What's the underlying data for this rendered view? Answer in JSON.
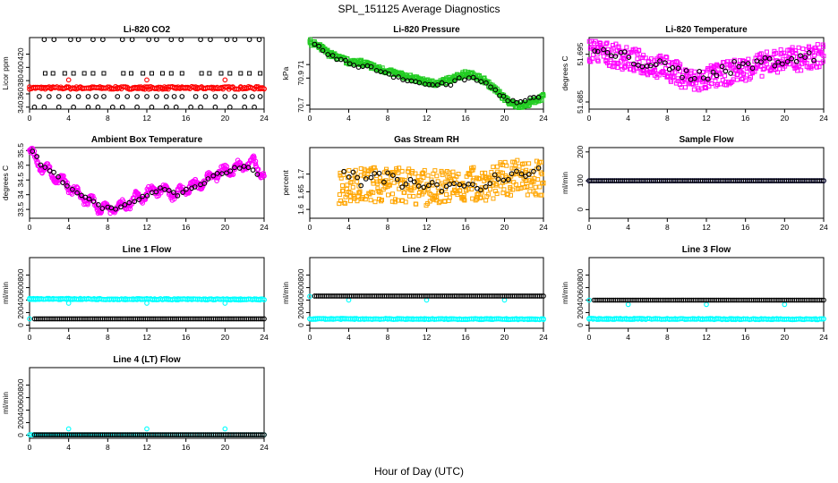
{
  "figure": {
    "title": "SPL_151125  Average Diagnostics",
    "xlabel": "Hour of Day (UTC)"
  },
  "colors": {
    "black": "#000000",
    "red": "#ff0000",
    "green": "#22cc22",
    "magenta": "#ff00ff",
    "orange": "#ffa500",
    "blue": "#0000ff",
    "cyan": "#00ffff",
    "axis": "#000000"
  },
  "chart_data": [
    {
      "type": "scatter",
      "title": "Li-820 CO2",
      "ylabel": "Licor ppm",
      "xlim": [
        0,
        24
      ],
      "ylim": [
        337,
        445
      ],
      "xticks": [
        0,
        4,
        8,
        12,
        16,
        20,
        24
      ],
      "yticks": [
        340,
        360,
        380,
        400,
        420
      ],
      "series": [
        {
          "color": "red",
          "marker": "circle",
          "kind": "flat",
          "x": [
            0,
            24
          ],
          "y": [
            369,
            369
          ],
          "spread": 2
        },
        {
          "color": "red",
          "marker": "circle",
          "kind": "points",
          "x": [
            4,
            12,
            20
          ],
          "y": [
            381,
            381,
            381
          ]
        },
        {
          "color": "black",
          "marker": "circle",
          "kind": "points",
          "x": [
            1.5,
            2.5,
            4.2,
            5,
            6.5,
            7.5,
            9.5,
            10.5,
            12.2,
            13,
            14.5,
            15.5,
            17.5,
            18.5,
            20.2,
            21,
            22.5,
            23.5
          ],
          "y": [
            442,
            442,
            442,
            442,
            442,
            442,
            442,
            442,
            442,
            442,
            442,
            442,
            442,
            442,
            442,
            442,
            442,
            442
          ]
        },
        {
          "color": "black",
          "marker": "square",
          "kind": "points",
          "x": [
            1.6,
            2.4,
            3.6,
            4.5,
            5.6,
            6.5,
            7.6,
            9.6,
            10.4,
            11.6,
            12.5,
            13.6,
            14.5,
            15.6,
            17.6,
            18.4,
            19.6,
            20.5,
            21.6,
            22.5,
            23.6
          ],
          "y": [
            391,
            391,
            391,
            391,
            391,
            391,
            391,
            391,
            391,
            391,
            391,
            391,
            391,
            391,
            391,
            391,
            391,
            391,
            391,
            391,
            391
          ]
        },
        {
          "color": "black",
          "marker": "circle",
          "kind": "points",
          "x": [
            1,
            2,
            3,
            4,
            5,
            6,
            6.8,
            7.6,
            9,
            10,
            11,
            12,
            13,
            14,
            14.8,
            15.6,
            17,
            18,
            19,
            20,
            21,
            22,
            22.8,
            23.6
          ],
          "y": [
            356,
            356,
            356,
            356,
            356,
            356,
            356,
            356,
            356,
            356,
            356,
            356,
            356,
            356,
            356,
            356,
            356,
            356,
            356,
            356,
            356,
            356,
            356,
            356
          ]
        },
        {
          "color": "black",
          "marker": "circle",
          "kind": "points",
          "x": [
            0.5,
            1.5,
            3,
            4.5,
            6,
            7,
            8.5,
            9.5,
            11,
            12.5,
            14,
            15,
            16.5,
            17.5,
            19,
            20.5,
            22,
            23
          ],
          "y": [
            340,
            340,
            340,
            340,
            340,
            340,
            340,
            340,
            340,
            340,
            340,
            340,
            340,
            340,
            340,
            340,
            340,
            340
          ]
        }
      ]
    },
    {
      "type": "scatter",
      "title": "Li-820 Pressure",
      "ylabel": "kPa",
      "xlim": [
        0,
        24
      ],
      "ylim": [
        70.67,
        71.2
      ],
      "xticks": [
        0,
        4,
        8,
        12,
        16,
        20,
        24
      ],
      "yticks": [
        70.7,
        70.9,
        71.0
      ],
      "series": [
        {
          "color": "green",
          "marker": "square",
          "kind": "curve",
          "x": [
            0,
            1,
            2,
            3,
            4,
            5,
            6,
            7,
            8,
            9,
            10,
            11,
            12,
            13,
            14,
            15,
            16,
            17,
            18,
            19,
            20,
            21,
            22,
            23,
            24
          ],
          "y": [
            71.17,
            71.13,
            71.08,
            71.05,
            71.02,
            71.02,
            71.0,
            70.97,
            70.95,
            70.93,
            70.91,
            70.89,
            70.87,
            70.86,
            70.88,
            70.91,
            70.93,
            70.92,
            70.88,
            70.82,
            70.75,
            70.7,
            70.7,
            70.73,
            70.76
          ],
          "spread": 0.02
        },
        {
          "color": "black",
          "marker": "circle",
          "kind": "curve",
          "x": [
            0.5,
            1.5,
            2.5,
            3.5,
            4.5,
            5.5,
            6.5,
            7.5,
            8.5,
            9.5,
            10.5,
            11.5,
            12.5,
            13.5,
            14.5,
            15.5,
            16.5,
            17.5,
            18.5,
            19.5,
            20.5,
            21.5,
            22.5,
            23.5
          ],
          "y": [
            71.14,
            71.1,
            71.05,
            71.02,
            71.0,
            70.99,
            70.97,
            70.95,
            70.92,
            70.9,
            70.88,
            70.86,
            70.85,
            70.85,
            70.86,
            70.89,
            70.9,
            70.88,
            70.84,
            70.78,
            70.73,
            70.71,
            70.74,
            70.75
          ],
          "spread": 0.015
        }
      ]
    },
    {
      "type": "scatter",
      "title": "Li-820 Temperature",
      "ylabel": "degrees C",
      "xlim": [
        0,
        24
      ],
      "ylim": [
        51.6835,
        51.6985
      ],
      "xticks": [
        0,
        4,
        8,
        12,
        16,
        20,
        24
      ],
      "yticks": [
        51.685,
        51.695
      ],
      "series": [
        {
          "color": "magenta",
          "marker": "square",
          "kind": "curve",
          "x": [
            0,
            2,
            4,
            6,
            8,
            10,
            11,
            12,
            14,
            16,
            18,
            20,
            22,
            24
          ],
          "y": [
            51.696,
            51.695,
            51.694,
            51.693,
            51.692,
            51.69,
            51.689,
            51.69,
            51.691,
            51.692,
            51.693,
            51.694,
            51.694,
            51.695
          ],
          "spread": 0.0025
        },
        {
          "color": "black",
          "marker": "circle",
          "kind": "curve",
          "x": [
            0.5,
            2,
            3.5,
            5,
            6.5,
            8,
            9.5,
            11,
            12.5,
            14,
            15.5,
            17,
            18.5,
            20,
            21.5,
            23
          ],
          "y": [
            51.6955,
            51.695,
            51.6945,
            51.6935,
            51.693,
            51.692,
            51.691,
            51.6905,
            51.691,
            51.692,
            51.6925,
            51.693,
            51.6935,
            51.694,
            51.694,
            51.6945
          ],
          "spread": 0.0012
        }
      ]
    },
    {
      "type": "scatter",
      "title": "Ambient Box Temperature",
      "ylabel": "degrees C",
      "xlim": [
        0,
        24
      ],
      "ylim": [
        33.2,
        35.6
      ],
      "xticks": [
        0,
        4,
        8,
        12,
        16,
        20,
        24
      ],
      "yticks": [
        33.5,
        34.0,
        34.5,
        35.0,
        35.5
      ],
      "series": [
        {
          "color": "magenta",
          "marker": "circle",
          "kind": "curve",
          "x": [
            0,
            0.5,
            1,
            2,
            3,
            4,
            5,
            6,
            7,
            8,
            9,
            10,
            11,
            12,
            13,
            14,
            15,
            16,
            17,
            18,
            19,
            20,
            21,
            22,
            23,
            24
          ],
          "y": [
            35.5,
            35.3,
            35.0,
            34.8,
            34.5,
            34.3,
            34.0,
            33.8,
            33.6,
            33.5,
            33.6,
            33.7,
            33.9,
            34.0,
            34.2,
            34.1,
            34.0,
            34.2,
            34.3,
            34.5,
            34.7,
            34.8,
            34.9,
            35.0,
            35.1,
            34.6
          ],
          "spread": 0.1,
          "wave": 0.15
        },
        {
          "color": "black",
          "marker": "circle",
          "kind": "curve",
          "x": [
            0.3,
            1.3,
            2.3,
            3.3,
            4.3,
            5.3,
            6.3,
            7.3,
            8.3,
            9.3,
            10.3,
            11.3,
            12.3,
            13.3,
            14.3,
            15.3,
            16.3,
            17.3,
            18.3,
            19.3,
            20.3,
            21.3,
            22.3,
            23.3
          ],
          "y": [
            35.5,
            35.0,
            34.8,
            34.5,
            34.2,
            34.0,
            33.8,
            33.6,
            33.5,
            33.6,
            33.7,
            33.9,
            34.0,
            34.2,
            34.1,
            34.0,
            34.2,
            34.3,
            34.5,
            34.7,
            34.8,
            34.9,
            35.0,
            34.7
          ],
          "spread": 0.05
        }
      ]
    },
    {
      "type": "scatter",
      "title": "Gas Stream RH",
      "ylabel": "percent",
      "xlim": [
        0,
        24
      ],
      "ylim": [
        1.575,
        1.775
      ],
      "xticks": [
        0,
        4,
        8,
        12,
        16,
        20,
        24
      ],
      "yticks": [
        1.6,
        1.65,
        1.7
      ],
      "series": [
        {
          "color": "orange",
          "marker": "square",
          "kind": "curve",
          "x": [
            3,
            6,
            9,
            12,
            15,
            18,
            21,
            24
          ],
          "y": [
            1.665,
            1.67,
            1.67,
            1.66,
            1.665,
            1.675,
            1.69,
            1.69
          ],
          "spread": 0.05
        },
        {
          "color": "black",
          "marker": "circle",
          "kind": "curve",
          "x": [
            3.5,
            4.5,
            5.5,
            6.5,
            7.5,
            8.5,
            9.5,
            10.5,
            11.5,
            12.5,
            13.5,
            14.5,
            15.5,
            16.5,
            17.5,
            18.5,
            19.5,
            20.5,
            21.5,
            22.5,
            23.5
          ],
          "y": [
            1.715,
            1.69,
            1.68,
            1.7,
            1.68,
            1.7,
            1.67,
            1.68,
            1.66,
            1.67,
            1.65,
            1.66,
            1.67,
            1.68,
            1.66,
            1.68,
            1.7,
            1.69,
            1.71,
            1.69,
            1.72
          ],
          "spread": 0.015
        }
      ]
    },
    {
      "type": "scatter",
      "title": "Sample Flow",
      "ylabel": "ml/min",
      "xlim": [
        0,
        24
      ],
      "ylim": [
        -30,
        215
      ],
      "xticks": [
        0,
        4,
        8,
        12,
        16,
        20,
        24
      ],
      "yticks": [
        0,
        100,
        200
      ],
      "series": [
        {
          "color": "blue",
          "marker": "circle",
          "kind": "flat",
          "x": [
            0,
            24
          ],
          "y": [
            100,
            100
          ],
          "spread": 0
        },
        {
          "color": "black",
          "marker": "circle",
          "kind": "flat",
          "x": [
            0,
            24
          ],
          "y": [
            100,
            100
          ],
          "spread": 0
        }
      ]
    },
    {
      "type": "scatter",
      "title": "Line 1 Flow",
      "ylabel": "ml/min",
      "xlim": [
        0,
        24
      ],
      "ylim": [
        -50,
        1080
      ],
      "xticks": [
        0,
        4,
        8,
        12,
        16,
        20,
        24
      ],
      "yticks": [
        0,
        200,
        400,
        600,
        800
      ],
      "series": [
        {
          "color": "cyan",
          "marker": "circle",
          "kind": "flat",
          "x": [
            0,
            24
          ],
          "y": [
            420,
            410
          ],
          "spread": 10
        },
        {
          "color": "cyan",
          "marker": "circle",
          "kind": "points",
          "x": [
            0,
            4,
            12,
            20
          ],
          "y": [
            100,
            350,
            350,
            350
          ]
        },
        {
          "color": "black",
          "marker": "circle",
          "kind": "flat",
          "x": [
            0.5,
            24
          ],
          "y": [
            100,
            100
          ],
          "spread": 0
        }
      ]
    },
    {
      "type": "scatter",
      "title": "Line 2 Flow",
      "ylabel": "ml/min",
      "xlim": [
        0,
        24
      ],
      "ylim": [
        -50,
        1080
      ],
      "xticks": [
        0,
        4,
        8,
        12,
        16,
        20,
        24
      ],
      "yticks": [
        0,
        200,
        400,
        600,
        800
      ],
      "series": [
        {
          "color": "cyan",
          "marker": "circle",
          "kind": "flat",
          "x": [
            0,
            24
          ],
          "y": [
            100,
            95
          ],
          "spread": 8
        },
        {
          "color": "cyan",
          "marker": "circle",
          "kind": "points",
          "x": [
            0,
            4,
            12,
            20
          ],
          "y": [
            460,
            400,
            400,
            400
          ]
        },
        {
          "color": "black",
          "marker": "circle",
          "kind": "flat",
          "x": [
            0.5,
            24
          ],
          "y": [
            465,
            465
          ],
          "spread": 0
        }
      ]
    },
    {
      "type": "scatter",
      "title": "Line 3 Flow",
      "ylabel": "ml/min",
      "xlim": [
        0,
        24
      ],
      "ylim": [
        -50,
        1080
      ],
      "xticks": [
        0,
        4,
        8,
        12,
        16,
        20,
        24
      ],
      "yticks": [
        0,
        200,
        400,
        600,
        800
      ],
      "series": [
        {
          "color": "cyan",
          "marker": "circle",
          "kind": "flat",
          "x": [
            0,
            24
          ],
          "y": [
            100,
            95
          ],
          "spread": 8
        },
        {
          "color": "cyan",
          "marker": "circle",
          "kind": "points",
          "x": [
            0,
            4,
            12,
            20
          ],
          "y": [
            400,
            330,
            330,
            330
          ]
        },
        {
          "color": "black",
          "marker": "circle",
          "kind": "flat",
          "x": [
            0.5,
            24
          ],
          "y": [
            400,
            400
          ],
          "spread": 0
        }
      ]
    },
    {
      "type": "scatter",
      "title": "Line 4 (LT) Flow",
      "ylabel": "ml/min",
      "xlim": [
        0,
        24
      ],
      "ylim": [
        -50,
        1080
      ],
      "xticks": [
        0,
        4,
        8,
        12,
        16,
        20,
        24
      ],
      "yticks": [
        0,
        200,
        400,
        600,
        800
      ],
      "series": [
        {
          "color": "cyan",
          "marker": "circle",
          "kind": "flat",
          "x": [
            0,
            24
          ],
          "y": [
            5,
            5
          ],
          "spread": 0
        },
        {
          "color": "cyan",
          "marker": "circle",
          "kind": "points",
          "x": [
            4,
            12,
            20
          ],
          "y": [
            100,
            100,
            100
          ]
        },
        {
          "color": "black",
          "marker": "circle",
          "kind": "flat",
          "x": [
            0.5,
            24
          ],
          "y": [
            5,
            5
          ],
          "spread": 0
        }
      ]
    }
  ]
}
